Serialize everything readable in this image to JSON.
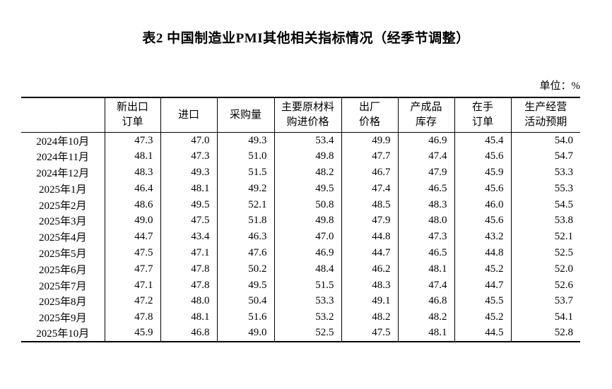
{
  "title": "表2 中国制造业PMI其他相关指标情况（经季节调整）",
  "unit_label": "单位：%",
  "table": {
    "headers": [
      "",
      "新出口\n订单",
      "进口",
      "采购量",
      "主要原材料\n购进价格",
      "出厂\n价格",
      "产成品\n库存",
      "在手\n订单",
      "生产经营\n活动预期"
    ],
    "rows": [
      {
        "month": "2024年10月",
        "values": [
          "47.3",
          "47.0",
          "49.3",
          "53.4",
          "49.9",
          "46.9",
          "45.4",
          "54.0"
        ]
      },
      {
        "month": "2024年11月",
        "values": [
          "48.1",
          "47.3",
          "51.0",
          "49.8",
          "47.7",
          "47.4",
          "45.6",
          "54.7"
        ]
      },
      {
        "month": "2024年12月",
        "values": [
          "48.3",
          "49.3",
          "51.5",
          "48.2",
          "46.7",
          "47.9",
          "45.9",
          "53.3"
        ]
      },
      {
        "month": "2025年1月",
        "values": [
          "46.4",
          "48.1",
          "49.2",
          "49.5",
          "47.4",
          "46.5",
          "45.6",
          "55.3"
        ]
      },
      {
        "month": "2025年2月",
        "values": [
          "48.6",
          "49.5",
          "52.1",
          "50.8",
          "48.5",
          "48.3",
          "46.0",
          "54.5"
        ]
      },
      {
        "month": "2025年3月",
        "values": [
          "49.0",
          "47.5",
          "51.8",
          "49.8",
          "47.9",
          "48.0",
          "45.6",
          "53.8"
        ]
      },
      {
        "month": "2025年4月",
        "values": [
          "44.7",
          "43.4",
          "46.3",
          "47.0",
          "44.8",
          "47.3",
          "43.2",
          "52.1"
        ]
      },
      {
        "month": "2025年5月",
        "values": [
          "47.5",
          "47.1",
          "47.6",
          "46.9",
          "44.7",
          "46.5",
          "44.8",
          "52.5"
        ]
      },
      {
        "month": "2025年6月",
        "values": [
          "47.7",
          "47.8",
          "50.2",
          "48.4",
          "46.2",
          "48.1",
          "45.2",
          "52.0"
        ]
      },
      {
        "month": "2025年7月",
        "values": [
          "47.1",
          "47.8",
          "49.5",
          "51.5",
          "48.3",
          "47.4",
          "44.7",
          "52.6"
        ]
      },
      {
        "month": "2025年8月",
        "values": [
          "47.2",
          "48.0",
          "50.4",
          "53.3",
          "49.1",
          "46.8",
          "45.5",
          "53.7"
        ]
      },
      {
        "month": "2025年9月",
        "values": [
          "47.8",
          "48.1",
          "51.6",
          "53.2",
          "48.2",
          "48.2",
          "45.2",
          "54.1"
        ]
      },
      {
        "month": "2025年10月",
        "values": [
          "45.9",
          "46.8",
          "49.0",
          "52.5",
          "47.5",
          "48.1",
          "44.5",
          "52.8"
        ]
      }
    ]
  }
}
